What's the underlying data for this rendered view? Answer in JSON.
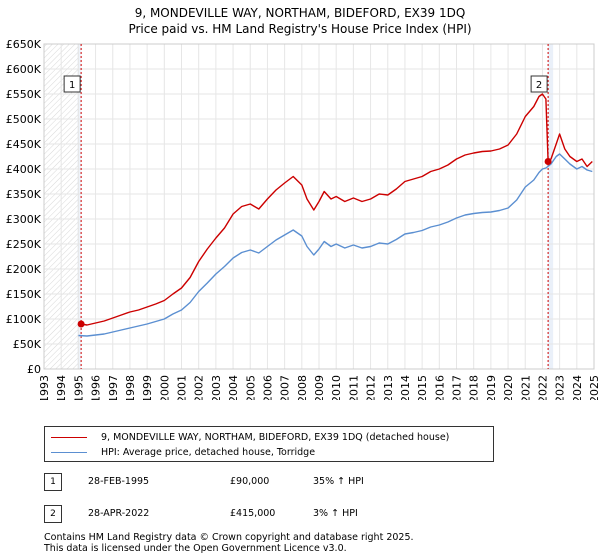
{
  "chart_data": {
    "type": "line",
    "title": "9, MONDEVILLE WAY, NORTHAM, BIDEFORD, EX39 1DQ",
    "subtitle": "Price paid vs. HM Land Registry's House Price Index (HPI)",
    "xlabel": "",
    "ylabel": "",
    "xlim": [
      1993,
      2025
    ],
    "ylim": [
      0,
      650000
    ],
    "x_ticks": [
      "1993",
      "1994",
      "1995",
      "1996",
      "1997",
      "1998",
      "1999",
      "2000",
      "2001",
      "2002",
      "2003",
      "2004",
      "2005",
      "2006",
      "2007",
      "2008",
      "2009",
      "2010",
      "2011",
      "2012",
      "2013",
      "2014",
      "2015",
      "2016",
      "2017",
      "2018",
      "2019",
      "2020",
      "2021",
      "2022",
      "2023",
      "2024",
      "2025"
    ],
    "y_ticks": [
      {
        "value": 0,
        "label": "£0"
      },
      {
        "value": 50000,
        "label": "£50K"
      },
      {
        "value": 100000,
        "label": "£100K"
      },
      {
        "value": 150000,
        "label": "£150K"
      },
      {
        "value": 200000,
        "label": "£200K"
      },
      {
        "value": 250000,
        "label": "£250K"
      },
      {
        "value": 300000,
        "label": "£300K"
      },
      {
        "value": 350000,
        "label": "£350K"
      },
      {
        "value": 400000,
        "label": "£400K"
      },
      {
        "value": 450000,
        "label": "£450K"
      },
      {
        "value": 500000,
        "label": "£500K"
      },
      {
        "value": 550000,
        "label": "£550K"
      },
      {
        "value": 600000,
        "label": "£600K"
      },
      {
        "value": 650000,
        "label": "£650K"
      }
    ],
    "series": [
      {
        "name": "9, MONDEVILLE WAY, NORTHAM, BIDEFORD, EX39 1DQ (detached house)",
        "color": "#cc0000",
        "x": [
          1995.16,
          1995.5,
          1996,
          1996.5,
          1997,
          1997.5,
          1998,
          1998.5,
          1999,
          1999.5,
          2000,
          2000.5,
          2001,
          2001.5,
          2002,
          2002.5,
          2003,
          2003.5,
          2004,
          2004.5,
          2005,
          2005.5,
          2006,
          2006.5,
          2007,
          2007.5,
          2008,
          2008.3,
          2008.7,
          2009,
          2009.3,
          2009.7,
          2010,
          2010.5,
          2011,
          2011.5,
          2012,
          2012.5,
          2013,
          2013.5,
          2014,
          2014.5,
          2015,
          2015.5,
          2016,
          2016.5,
          2017,
          2017.5,
          2018,
          2018.5,
          2019,
          2019.5,
          2020,
          2020.5,
          2021,
          2021.5,
          2021.8,
          2022.0,
          2022.2,
          2022.33,
          2022.5,
          2022.8,
          2023.0,
          2023.3,
          2023.6,
          2024.0,
          2024.3,
          2024.6,
          2024.9
        ],
        "values": [
          90000,
          88000,
          92000,
          96000,
          102000,
          108000,
          114000,
          118000,
          124000,
          130000,
          137000,
          150000,
          162000,
          183000,
          215000,
          240000,
          262000,
          282000,
          310000,
          325000,
          330000,
          320000,
          340000,
          358000,
          372000,
          385000,
          368000,
          340000,
          318000,
          335000,
          355000,
          340000,
          345000,
          335000,
          342000,
          335000,
          340000,
          350000,
          348000,
          360000,
          375000,
          380000,
          385000,
          395000,
          400000,
          408000,
          420000,
          428000,
          432000,
          435000,
          436000,
          440000,
          448000,
          470000,
          505000,
          525000,
          545000,
          550000,
          540000,
          415000,
          420000,
          450000,
          470000,
          440000,
          425000,
          415000,
          420000,
          405000,
          415000
        ]
      },
      {
        "name": "HPI: Average price, detached house, Torridge",
        "color": "#5b8fd1",
        "x": [
          1995,
          1995.5,
          1996,
          1996.5,
          1997,
          1997.5,
          1998,
          1998.5,
          1999,
          1999.5,
          2000,
          2000.5,
          2001,
          2001.5,
          2002,
          2002.5,
          2003,
          2003.5,
          2004,
          2004.5,
          2005,
          2005.5,
          2006,
          2006.5,
          2007,
          2007.5,
          2008,
          2008.3,
          2008.7,
          2009,
          2009.3,
          2009.7,
          2010,
          2010.5,
          2011,
          2011.5,
          2012,
          2012.5,
          2013,
          2013.5,
          2014,
          2014.5,
          2015,
          2015.5,
          2016,
          2016.5,
          2017,
          2017.5,
          2018,
          2018.5,
          2019,
          2019.5,
          2020,
          2020.5,
          2021,
          2021.5,
          2021.8,
          2022.0,
          2022.2,
          2022.5,
          2022.8,
          2023.0,
          2023.3,
          2023.6,
          2024.0,
          2024.3,
          2024.6,
          2024.9
        ],
        "values": [
          67000,
          66000,
          68000,
          70000,
          74000,
          78000,
          82000,
          86000,
          90000,
          95000,
          100000,
          110000,
          118000,
          133000,
          155000,
          172000,
          190000,
          205000,
          222000,
          233000,
          238000,
          232000,
          245000,
          258000,
          268000,
          278000,
          266000,
          245000,
          228000,
          240000,
          255000,
          245000,
          250000,
          242000,
          248000,
          242000,
          245000,
          252000,
          250000,
          259000,
          270000,
          273000,
          277000,
          284000,
          288000,
          294000,
          302000,
          308000,
          311000,
          313000,
          314000,
          317000,
          322000,
          338000,
          364000,
          378000,
          393000,
          400000,
          402000,
          410000,
          425000,
          430000,
          420000,
          410000,
          400000,
          405000,
          398000,
          395000
        ]
      }
    ],
    "sales": [
      {
        "marker": "1",
        "x": 1995.16,
        "value": 90000
      },
      {
        "marker": "2",
        "x": 2022.33,
        "value": 415000
      }
    ]
  },
  "legend": {
    "items": [
      {
        "label": "9, MONDEVILLE WAY, NORTHAM, BIDEFORD, EX39 1DQ (detached house)",
        "color": "#cc0000"
      },
      {
        "label": "HPI: Average price, detached house, Torridge",
        "color": "#5b8fd1"
      }
    ]
  },
  "sales_table": [
    {
      "marker": "1",
      "date": "28-FEB-1995",
      "price": "£90,000",
      "hpi": "35% ↑ HPI"
    },
    {
      "marker": "2",
      "date": "28-APR-2022",
      "price": "£415,000",
      "hpi": "3% ↑ HPI"
    }
  ],
  "footer": {
    "line1": "Contains HM Land Registry data © Crown copyright and database right 2025.",
    "line2": "This data is licensed under the Open Government Licence v3.0."
  }
}
